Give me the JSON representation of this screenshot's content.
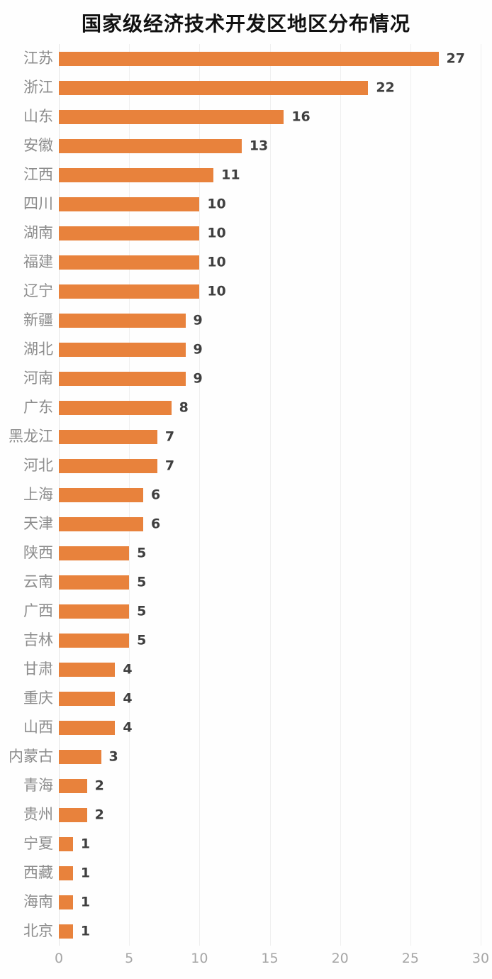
{
  "chart_data": {
    "type": "bar",
    "orientation": "horizontal",
    "title": "国家级经济技术开发区地区分布情况",
    "categories": [
      "江苏",
      "浙江",
      "山东",
      "安徽",
      "江西",
      "四川",
      "湖南",
      "福建",
      "辽宁",
      "新疆",
      "湖北",
      "河南",
      "广东",
      "黑龙江",
      "河北",
      "上海",
      "天津",
      "陕西",
      "云南",
      "广西",
      "吉林",
      "甘肃",
      "重庆",
      "山西",
      "内蒙古",
      "青海",
      "贵州",
      "宁夏",
      "西藏",
      "海南",
      "北京"
    ],
    "values": [
      27,
      22,
      16,
      13,
      11,
      10,
      10,
      10,
      10,
      9,
      9,
      9,
      8,
      7,
      7,
      6,
      6,
      5,
      5,
      5,
      5,
      4,
      4,
      4,
      3,
      2,
      2,
      1,
      1,
      1,
      1
    ],
    "xlabel": "",
    "ylabel": "",
    "xlim": [
      0,
      30
    ],
    "x_ticks": [
      0,
      5,
      10,
      15,
      20,
      25,
      30
    ],
    "grid": true,
    "legend": "none",
    "colors": {
      "bar": "#E8823C",
      "category_label": "#8C8C8C",
      "value_label": "#3F3F3F",
      "axis_tick": "#A6A6A6",
      "gridline": "#EFEFEF",
      "zero_line": "#E3E3E3",
      "background": "#FEFEFE",
      "title": "#111111"
    }
  }
}
